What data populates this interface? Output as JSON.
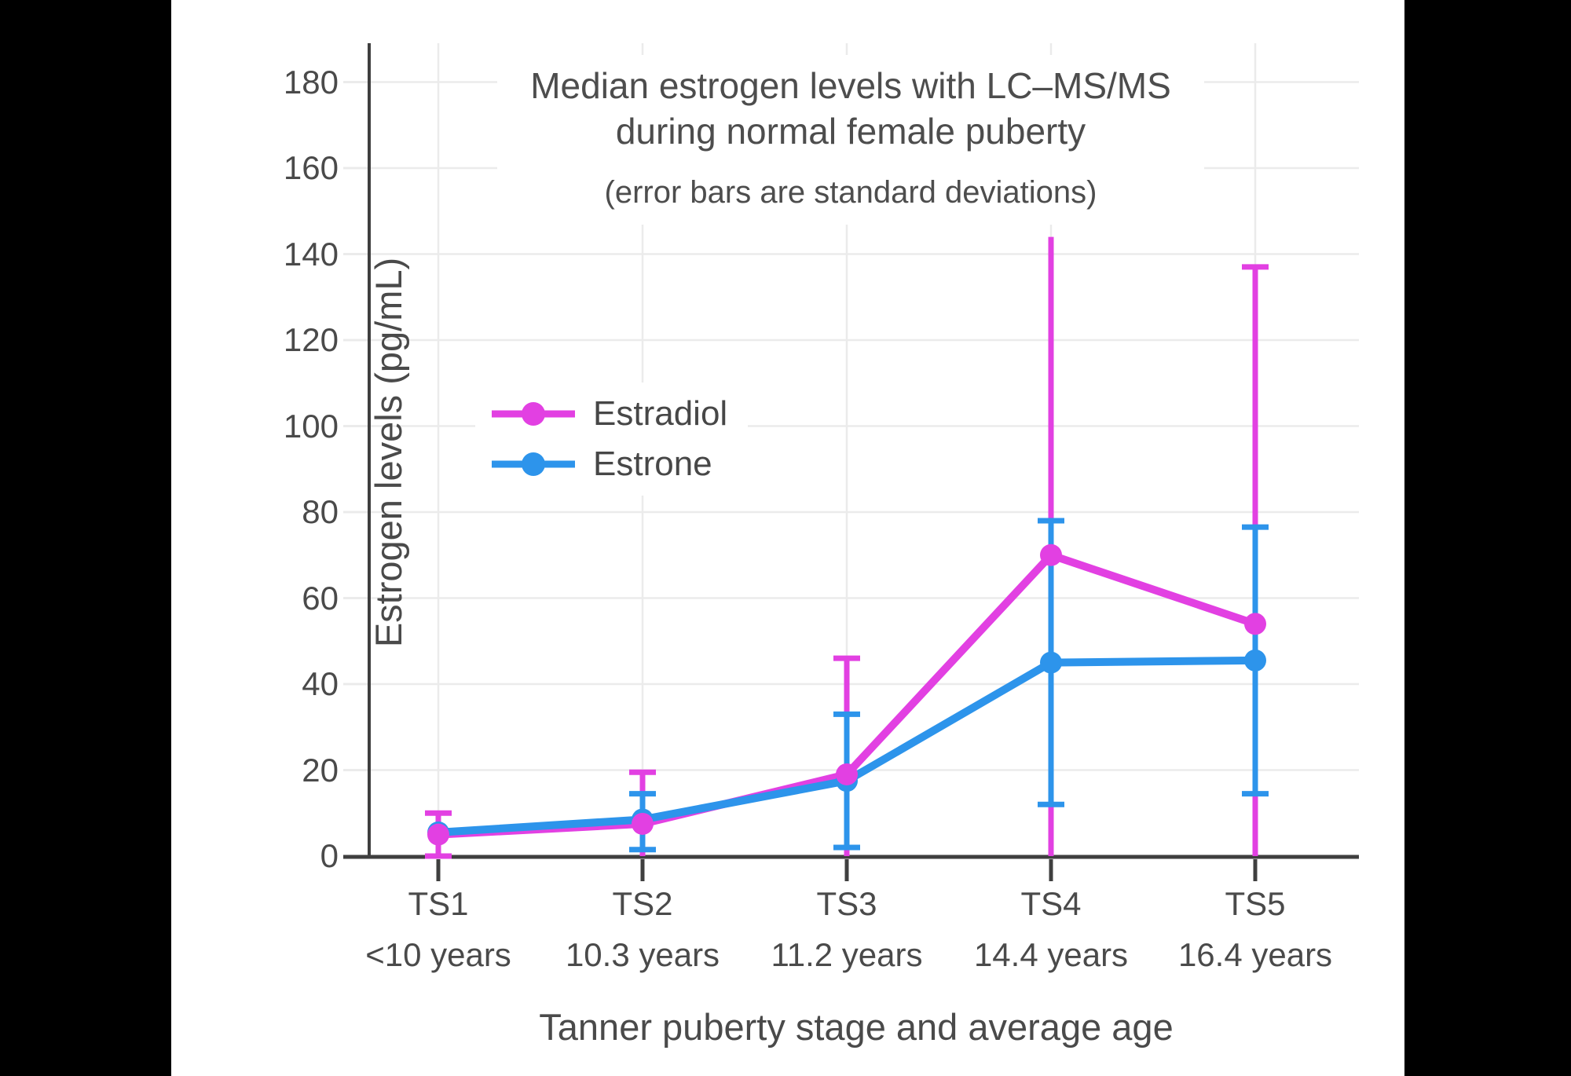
{
  "page": {
    "background": "#000000",
    "canvas_background": "#ffffff"
  },
  "chart_data": {
    "type": "line",
    "title_line1": "Median estrogen levels with LC–MS/MS",
    "title_line2": "during normal female puberty",
    "subtitle": "(error bars are standard deviations)",
    "xlabel": "Tanner puberty stage and average age",
    "ylabel": "Estrogen levels (pg/mL)",
    "x_categories": [
      {
        "stage": "TS1",
        "age": "<10 years"
      },
      {
        "stage": "TS2",
        "age": "10.3 years"
      },
      {
        "stage": "TS3",
        "age": "11.2 years"
      },
      {
        "stage": "TS4",
        "age": "14.4 years"
      },
      {
        "stage": "TS5",
        "age": "16.4 years"
      }
    ],
    "y_ticks": [
      0,
      20,
      40,
      60,
      80,
      100,
      120,
      140,
      160,
      180
    ],
    "ylim": [
      0,
      190
    ],
    "grid": true,
    "legend": {
      "position": "inside-upper-left",
      "entries": [
        "Estradiol",
        "Estrone"
      ]
    },
    "series": [
      {
        "name": "Estradiol",
        "color": "#E240E2",
        "values": [
          5,
          7.5,
          19,
          70,
          54
        ],
        "error_top": [
          10,
          19.5,
          46,
          144,
          137
        ],
        "error_bottom": [
          0,
          0,
          0,
          0,
          0
        ],
        "cap_top": [
          true,
          true,
          true,
          false,
          true
        ],
        "cap_bottom": [
          true,
          false,
          false,
          false,
          false
        ]
      },
      {
        "name": "Estrone",
        "color": "#2D94EB",
        "values": [
          5.5,
          8.5,
          17.5,
          45,
          45.5
        ],
        "error_top": [
          null,
          14.5,
          33,
          78,
          76.5
        ],
        "error_bottom": [
          null,
          1.5,
          2,
          12,
          14.5
        ],
        "cap_top": [
          false,
          true,
          true,
          true,
          true
        ],
        "cap_bottom": [
          false,
          true,
          true,
          true,
          true
        ]
      }
    ],
    "colors": {
      "grid": "#ebebeb",
      "axis": "#3f3f3f",
      "text": "#4a4a4a"
    }
  }
}
